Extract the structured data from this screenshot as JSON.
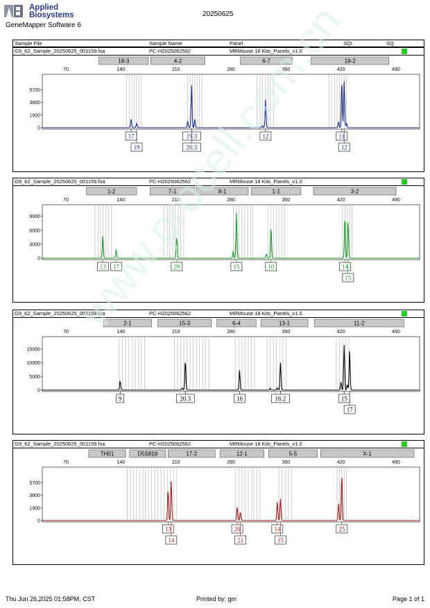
{
  "header": {
    "brand_line1": "Applied",
    "brand_line2": "Biosystems",
    "software": "GeneMapper Software 6",
    "date": "20250625",
    "col_sample_file": "Sample File",
    "col_sample_name": "Sample Name",
    "col_panel": "Panel",
    "col_sqi": "SQI",
    "col_sq": "SQ"
  },
  "footer": {
    "timestamp": "Thu Jun 26,2025 01:58PM, CST",
    "printed_by": "Printed by: gm",
    "page": "Page 1 of 1"
  },
  "watermark": "www.procell.com.cn",
  "colors": {
    "blue": "#1a2a8a",
    "green": "#1e9a2a",
    "black": "#000000",
    "red": "#a01818",
    "status": "#22cc22"
  },
  "chart_data": [
    {
      "type": "line",
      "series_color": "blue",
      "sample_file": "G9_62_Sample_20250625_001159.fsa",
      "sample_name": "PC-H2025062562",
      "panel": "MRMouse 18 Kits_Panels_v1.0",
      "x_ticks": [
        70,
        140,
        210,
        280,
        350,
        420,
        490
      ],
      "y_ticks": [
        0,
        1900,
        3800,
        5700
      ],
      "ylim": [
        0,
        7000
      ],
      "markers": [
        {
          "label": "18-3",
          "start": 112,
          "end": 175
        },
        {
          "label": "4-2",
          "start": 178,
          "end": 247
        },
        {
          "label": "6-7",
          "start": 292,
          "end": 358
        },
        {
          "label": "19-2",
          "start": 382,
          "end": 481
        }
      ],
      "bins": [
        147,
        151,
        154,
        157,
        160,
        163,
        166,
        225,
        228,
        231,
        234,
        237,
        240,
        243,
        313,
        317,
        320,
        324,
        327,
        330,
        334,
        405,
        408,
        412,
        415,
        418,
        421,
        424,
        427
      ],
      "peaks": [
        {
          "x": 153,
          "h": 1300
        },
        {
          "x": 160,
          "h": 650
        },
        {
          "x": 225,
          "h": 1000
        },
        {
          "x": 230,
          "h": 6400
        },
        {
          "x": 234,
          "h": 1300
        },
        {
          "x": 324,
          "h": 4300
        },
        {
          "x": 320,
          "h": 300
        },
        {
          "x": 417,
          "h": 900
        },
        {
          "x": 421,
          "h": 7000
        },
        {
          "x": 424,
          "h": 7000
        },
        {
          "x": 427,
          "h": 700
        }
      ],
      "labels": [
        {
          "x": 153,
          "text": "17",
          "row": 0
        },
        {
          "x": 160,
          "text": "19",
          "row": 1
        },
        {
          "x": 230,
          "text": "19.3",
          "row": 0
        },
        {
          "x": 230,
          "text": "20.3",
          "row": 1
        },
        {
          "x": 324,
          "text": "12",
          "row": 0
        },
        {
          "x": 421,
          "text": "11",
          "row": 0
        },
        {
          "x": 424,
          "text": "12",
          "row": 1
        }
      ]
    },
    {
      "type": "line",
      "series_color": "green",
      "sample_file": "G9_62_Sample_20250625_001159.fsa",
      "sample_name": "PC-H2025062562",
      "panel": "MRMouse 18 Kits_Panels_v1.0",
      "x_ticks": [
        70,
        140,
        210,
        280,
        350,
        420,
        490
      ],
      "y_ticks": [
        0,
        3000,
        6000,
        9000
      ],
      "ylim": [
        0,
        10000
      ],
      "markers": [
        {
          "label": "1-2",
          "start": 96,
          "end": 160
        },
        {
          "label": "7-1",
          "start": 177,
          "end": 234
        },
        {
          "label": "8-1",
          "start": 236,
          "end": 302
        },
        {
          "label": "1-1",
          "start": 306,
          "end": 369
        },
        {
          "label": "3-2",
          "start": 385,
          "end": 490
        }
      ],
      "bins": [
        107,
        111,
        114,
        117,
        121,
        124,
        128,
        195,
        199,
        202,
        206,
        209,
        213,
        216,
        220,
        283,
        287,
        290,
        294,
        297,
        301,
        305,
        308,
        327,
        331,
        334,
        338,
        341,
        345,
        348,
        422,
        425,
        428,
        431,
        434
      ],
      "peaks": [
        {
          "x": 117,
          "h": 5000
        },
        {
          "x": 134,
          "h": 1900
        },
        {
          "x": 211,
          "h": 4700
        },
        {
          "x": 283,
          "h": 1500
        },
        {
          "x": 287,
          "h": 10000
        },
        {
          "x": 325,
          "h": 900
        },
        {
          "x": 331,
          "h": 6700
        },
        {
          "x": 425,
          "h": 9000
        },
        {
          "x": 429,
          "h": 8000
        }
      ],
      "labels": [
        {
          "x": 117,
          "text": "13",
          "row": 0
        },
        {
          "x": 134,
          "text": "17",
          "row": 0
        },
        {
          "x": 211,
          "text": "29",
          "row": 0
        },
        {
          "x": 287,
          "text": "15",
          "row": 0
        },
        {
          "x": 331,
          "text": "10",
          "row": 0
        },
        {
          "x": 425,
          "text": "14",
          "row": 0
        },
        {
          "x": 429,
          "text": "15",
          "row": 1
        }
      ]
    },
    {
      "type": "line",
      "series_color": "black",
      "sample_file": "G9_62_Sample_20250625_001159.fsa",
      "sample_name": "PC-H2025062562",
      "panel": "MRMouse 18 Kits_Panels_v1.0",
      "x_ticks": [
        70,
        140,
        210,
        280,
        350,
        420,
        490
      ],
      "y_ticks": [
        0,
        5000,
        10000,
        15000
      ],
      "ylim": [
        0,
        17000
      ],
      "markers": [
        {
          "label": "2-1",
          "start": 118,
          "end": 179
        },
        {
          "label": "15-3",
          "start": 187,
          "end": 255
        },
        {
          "label": "6-4",
          "start": 262,
          "end": 312
        },
        {
          "label": "13-1",
          "start": 318,
          "end": 378
        },
        {
          "label": "11-2",
          "start": 386,
          "end": 500
        }
      ],
      "bins": [
        138,
        142,
        146,
        150,
        154,
        158,
        162,
        166,
        170,
        208,
        212,
        216,
        220,
        224,
        228,
        232,
        236,
        240,
        244,
        248,
        252,
        286,
        290,
        294,
        298,
        302,
        306,
        310,
        326,
        330,
        334,
        338,
        342,
        346,
        350,
        414,
        418,
        422,
        426,
        430
      ],
      "peaks": [
        {
          "x": 139,
          "h": 3400
        },
        {
          "x": 218,
          "h": 800
        },
        {
          "x": 222,
          "h": 11000
        },
        {
          "x": 291,
          "h": 7200
        },
        {
          "x": 330,
          "h": 600
        },
        {
          "x": 339,
          "h": 800
        },
        {
          "x": 343,
          "h": 10000
        },
        {
          "x": 420,
          "h": 3000
        },
        {
          "x": 424,
          "h": 16500
        },
        {
          "x": 428,
          "h": 2000
        },
        {
          "x": 431,
          "h": 14500
        }
      ],
      "labels": [
        {
          "x": 139,
          "text": "9",
          "row": 0
        },
        {
          "x": 222,
          "text": "20.3",
          "row": 0
        },
        {
          "x": 291,
          "text": "16",
          "row": 0
        },
        {
          "x": 343,
          "text": "16.2",
          "row": 0
        },
        {
          "x": 424,
          "text": "15",
          "row": 0
        },
        {
          "x": 431,
          "text": "17",
          "row": 1
        }
      ]
    },
    {
      "type": "line",
      "series_color": "red",
      "sample_file": "G9_62_Sample_20250625_001159.fsa",
      "sample_name": "PC-H2025062562",
      "panel": "MRMouse 18 Kits_Panels_v1.0",
      "x_ticks": [
        70,
        140,
        210,
        280,
        350,
        420,
        490
      ],
      "y_ticks": [
        0,
        1900,
        3800,
        5700
      ],
      "ylim": [
        0,
        7000
      ],
      "markers": [
        {
          "label": "TH01",
          "start": 99,
          "end": 146
        },
        {
          "label": "D5S818",
          "start": 151,
          "end": 197
        },
        {
          "label": "17-2",
          "start": 200,
          "end": 260
        },
        {
          "label": "12-1",
          "start": 266,
          "end": 322
        },
        {
          "label": "5-5",
          "start": 328,
          "end": 390
        },
        {
          "label": "X-1",
          "start": 394,
          "end": 513
        }
      ],
      "bins": [
        148,
        152,
        156,
        160,
        164,
        168,
        171,
        175,
        179,
        183,
        187,
        191,
        195,
        199,
        203,
        207,
        211,
        286,
        290,
        294,
        298,
        302,
        306,
        309,
        313,
        317,
        341,
        345,
        349,
        353,
        357,
        415,
        418,
        421,
        424,
        427
      ],
      "peaks": [
        {
          "x": 200,
          "h": 4600
        },
        {
          "x": 204,
          "h": 6000
        },
        {
          "x": 288,
          "h": 2100
        },
        {
          "x": 292,
          "h": 1300
        },
        {
          "x": 339,
          "h": 2800
        },
        {
          "x": 343,
          "h": 3300
        },
        {
          "x": 417,
          "h": 2600
        },
        {
          "x": 421,
          "h": 7000
        }
      ],
      "labels": [
        {
          "x": 200,
          "text": "13",
          "row": 0
        },
        {
          "x": 204,
          "text": "14",
          "row": 1
        },
        {
          "x": 288,
          "text": "20",
          "row": 0
        },
        {
          "x": 292,
          "text": "21",
          "row": 1
        },
        {
          "x": 339,
          "text": "14",
          "row": 0
        },
        {
          "x": 343,
          "text": "15",
          "row": 1
        },
        {
          "x": 421,
          "text": "25",
          "row": 0
        }
      ]
    }
  ]
}
